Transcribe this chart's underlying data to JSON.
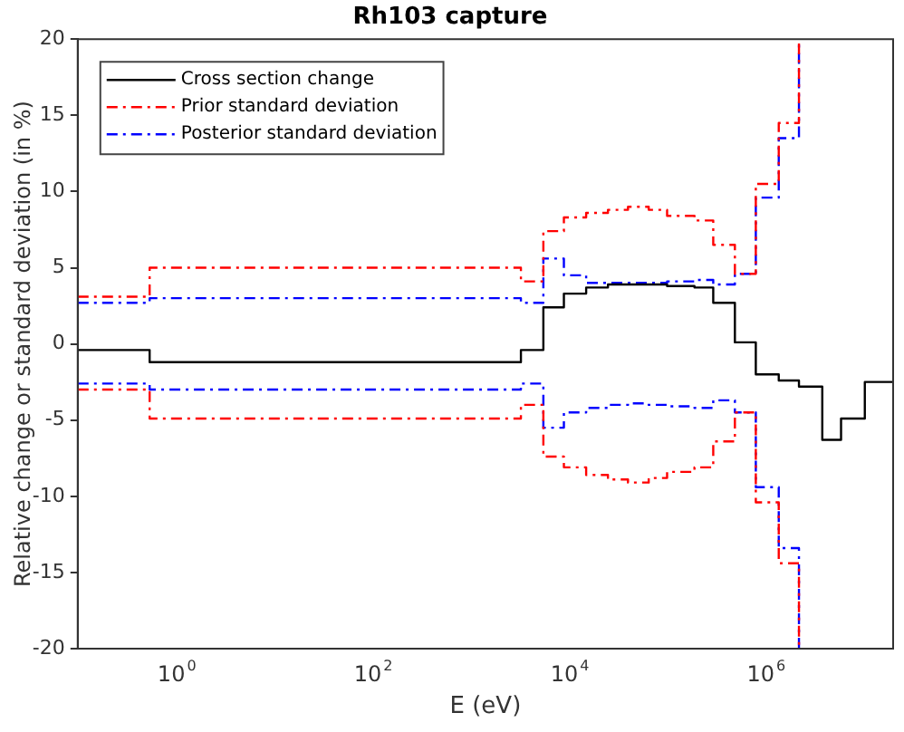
{
  "chart_data": {
    "type": "step",
    "title": "Rh103 capture",
    "xlabel": "E (eV)",
    "ylabel": "Relative change or standard deviation (in %)",
    "log": "x",
    "xlim": [
      0.1,
      20000000
    ],
    "ylim": [
      -20,
      20
    ],
    "xticks": [
      {
        "value": 1,
        "label": "10$^{0}$"
      },
      {
        "value": 100,
        "label": "10$^{2}$"
      },
      {
        "value": 10000,
        "label": "10$^{4}$"
      },
      {
        "value": 1000000,
        "label": "10$^{6}$"
      }
    ],
    "yticks": [
      -20,
      -15,
      -10,
      -5,
      0,
      5,
      10,
      15,
      20
    ],
    "grid": false,
    "legend": "top left",
    "marker": "none",
    "x": [
      0.1,
      0.54,
      3250,
      5500,
      8900,
      15000,
      25000,
      40000,
      65000,
      100000,
      190000,
      295000,
      490000,
      800000,
      1370000,
      2200000,
      3800000,
      5900000,
      10300000,
      20000000
    ],
    "series": [
      {
        "name": "Cross section change",
        "color": "#000000",
        "line_style": "solid",
        "values": [
          -0.4,
          -1.2,
          -0.4,
          2.4,
          3.3,
          3.7,
          3.9,
          3.9,
          3.9,
          3.8,
          3.7,
          2.7,
          0.1,
          -2.0,
          -2.4,
          -2.8,
          -6.3,
          -4.9,
          -2.5,
          -2.5
        ]
      },
      {
        "name": "Prior standard deviation",
        "color": "#ff0000",
        "line_style": "dashdot",
        "values": [
          3.1,
          5.0,
          4.1,
          7.4,
          8.3,
          8.6,
          8.8,
          9.0,
          8.8,
          8.4,
          8.1,
          6.5,
          4.6,
          10.5,
          14.5,
          20,
          null,
          null,
          null,
          null
        ]
      },
      {
        "name": "Posterior standard deviation",
        "color": "#0000ff",
        "line_style": "dashdot",
        "values": [
          2.7,
          3.0,
          2.7,
          5.6,
          4.5,
          4.0,
          4.0,
          4.0,
          4.0,
          4.1,
          4.2,
          3.9,
          4.6,
          9.6,
          13.5,
          20,
          null,
          null,
          null,
          null
        ]
      },
      {
        "color": "#ff0000",
        "line_style": "dashdot",
        "values": [
          -3.0,
          -4.9,
          -4.0,
          -7.4,
          -8.1,
          -8.6,
          -8.9,
          -9.1,
          -8.8,
          -8.4,
          -8.1,
          -6.4,
          -4.5,
          -10.4,
          -14.4,
          -20,
          null,
          null,
          null,
          null
        ]
      },
      {
        "color": "#0000ff",
        "line_style": "dashdot",
        "values": [
          -2.6,
          -3.0,
          -2.6,
          -5.5,
          -4.5,
          -4.2,
          -4.0,
          -3.9,
          -4.0,
          -4.1,
          -4.2,
          -3.7,
          -4.5,
          -9.4,
          -13.4,
          -20,
          null,
          null,
          null,
          null
        ]
      }
    ]
  }
}
